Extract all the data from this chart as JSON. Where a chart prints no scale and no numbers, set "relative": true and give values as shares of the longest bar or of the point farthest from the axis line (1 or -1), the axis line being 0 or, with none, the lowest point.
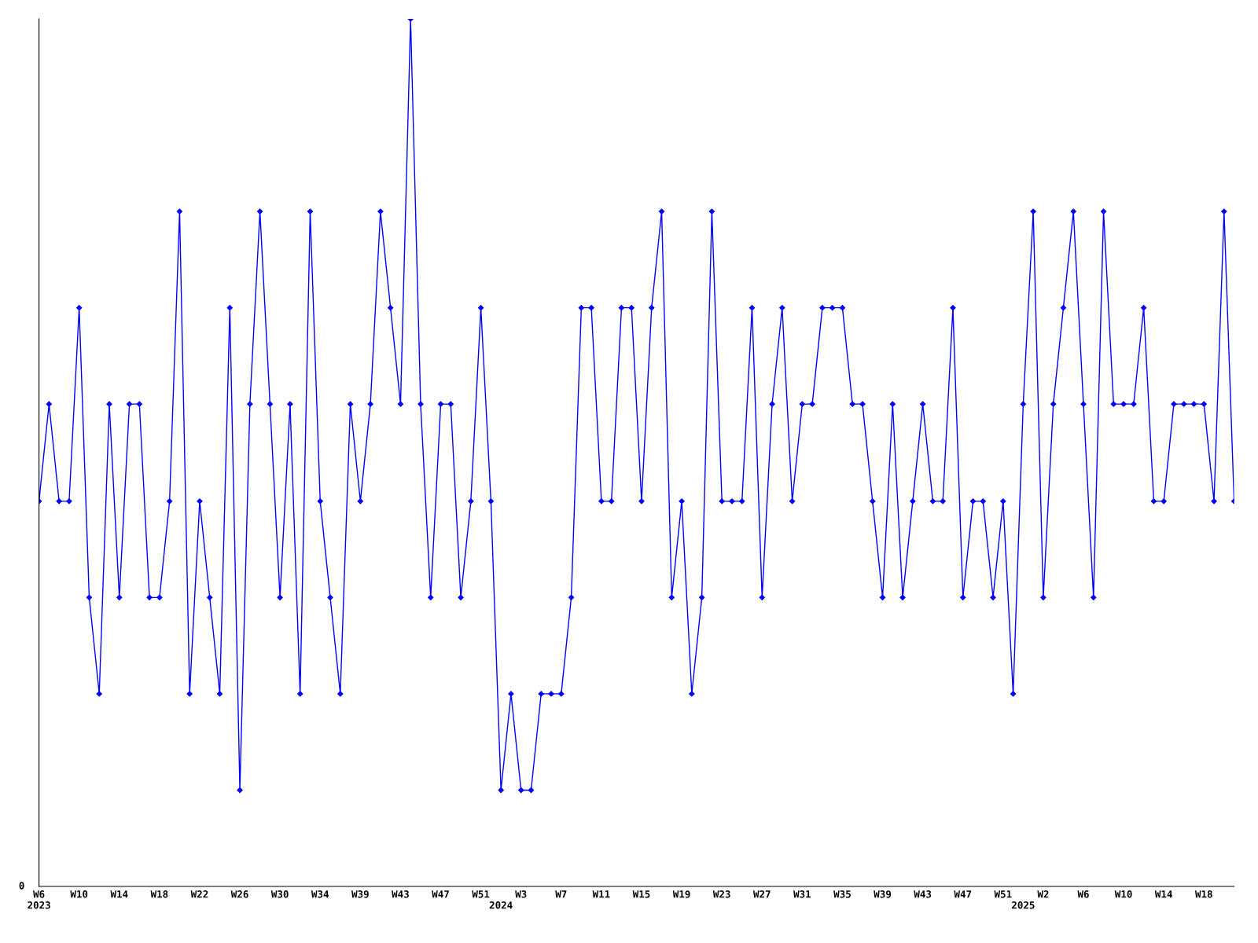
{
  "chart_data": {
    "type": "line",
    "relative": true,
    "marker": "diamond",
    "grid": false,
    "legend": false,
    "annotations": [
      "0"
    ],
    "categories": [
      "W6\n2023",
      null,
      null,
      null,
      "W10",
      null,
      null,
      null,
      "W14",
      null,
      null,
      null,
      "W18",
      null,
      null,
      null,
      "W22",
      null,
      null,
      null,
      "W26",
      null,
      null,
      null,
      "W30",
      null,
      null,
      null,
      "W34",
      null,
      null,
      null,
      "W39",
      null,
      null,
      null,
      "W43",
      null,
      null,
      null,
      "W47",
      null,
      null,
      null,
      "W51",
      null,
      "\n2024",
      null,
      "W3",
      null,
      null,
      null,
      "W7",
      null,
      null,
      null,
      "W11",
      null,
      null,
      null,
      "W15",
      null,
      null,
      null,
      "W19",
      null,
      null,
      null,
      "W23",
      null,
      null,
      null,
      "W27",
      null,
      null,
      null,
      "W31",
      null,
      null,
      null,
      "W35",
      null,
      null,
      null,
      "W39",
      null,
      null,
      null,
      "W43",
      null,
      null,
      null,
      "W47",
      null,
      null,
      null,
      "W51",
      null,
      "\n2025",
      null,
      "W2",
      null,
      null,
      null,
      "W6",
      null,
      null,
      null,
      "W10",
      null,
      null,
      null,
      "W14",
      null,
      null,
      null,
      "W18",
      null,
      null,
      null
    ],
    "series": [
      {
        "color": "#0000ff",
        "values": [
          0.444,
          0.556,
          0.444,
          0.444,
          0.667,
          0.333,
          0.222,
          0.556,
          0.333,
          0.556,
          0.556,
          0.333,
          0.333,
          0.444,
          0.778,
          0.222,
          0.444,
          0.333,
          0.222,
          0.667,
          0.111,
          0.556,
          0.778,
          0.556,
          0.333,
          0.556,
          0.222,
          0.778,
          0.444,
          0.333,
          0.222,
          0.556,
          0.444,
          0.556,
          0.778,
          0.667,
          0.556,
          1,
          0.556,
          0.333,
          0.556,
          0.556,
          0.333,
          0.444,
          0.667,
          0.444,
          0.111,
          0.222,
          0.111,
          0.111,
          0.222,
          0.222,
          0.222,
          0.333,
          0.667,
          0.667,
          0.444,
          0.444,
          0.667,
          0.667,
          0.444,
          0.667,
          0.778,
          0.333,
          0.444,
          0.222,
          0.333,
          0.778,
          0.444,
          0.444,
          0.444,
          0.667,
          0.333,
          0.556,
          0.667,
          0.444,
          0.556,
          0.556,
          0.667,
          0.667,
          0.667,
          0.556,
          0.556,
          0.444,
          0.333,
          0.556,
          0.333,
          0.444,
          0.556,
          0.444,
          0.444,
          0.667,
          0.333,
          0.444,
          0.444,
          0.333,
          0.444,
          0.222,
          0.556,
          0.778,
          0.333,
          0.556,
          0.667,
          0.778,
          0.556,
          0.333,
          0.778,
          0.556,
          0.556,
          0.556,
          0.667,
          0.444,
          0.444,
          0.556,
          0.556,
          0.556,
          0.556,
          0.444,
          0.778,
          0.444
        ]
      }
    ]
  }
}
